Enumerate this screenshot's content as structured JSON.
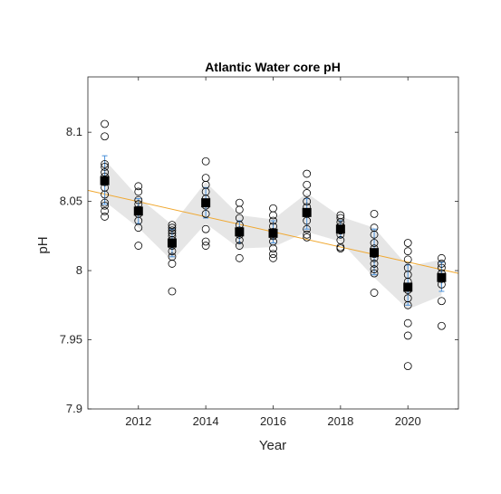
{
  "chart_data": {
    "type": "scatter",
    "title": "Atlantic Water core pH",
    "xlabel": "Year",
    "ylabel": "pH",
    "xlim": [
      2010.5,
      2021.5
    ],
    "ylim": [
      7.9,
      8.14
    ],
    "xticks": [
      2012,
      2014,
      2016,
      2018,
      2020
    ],
    "yticks": [
      7.9,
      7.95,
      8.0,
      8.05,
      8.1
    ],
    "ytick_labels": [
      "7.9",
      "7.95",
      "8",
      "8.05",
      "8.1"
    ],
    "grid": false,
    "legend": "none",
    "colors": {
      "band": "#e6e6e6",
      "trend": "#f0a830",
      "errorbar": "#4a90d9",
      "mean_marker": "#000000",
      "observation": "#000000"
    },
    "observations": [
      {
        "year": 2011,
        "values": [
          8.106,
          8.097,
          8.077,
          8.075,
          8.071,
          8.068,
          8.064,
          8.06,
          8.055,
          8.049,
          8.047,
          8.043,
          8.039
        ]
      },
      {
        "year": 2012,
        "values": [
          8.061,
          8.057,
          8.051,
          8.048,
          8.044,
          8.041,
          8.036,
          8.031,
          8.018
        ]
      },
      {
        "year": 2013,
        "values": [
          8.033,
          8.031,
          8.029,
          8.027,
          8.025,
          8.022,
          8.018,
          8.014,
          8.01,
          8.005,
          7.985
        ]
      },
      {
        "year": 2014,
        "values": [
          8.079,
          8.067,
          8.062,
          8.057,
          8.052,
          8.047,
          8.041,
          8.03,
          8.021,
          8.018
        ]
      },
      {
        "year": 2015,
        "values": [
          8.049,
          8.044,
          8.038,
          8.033,
          8.029,
          8.026,
          8.022,
          8.018,
          8.009
        ]
      },
      {
        "year": 2016,
        "values": [
          8.045,
          8.04,
          8.036,
          8.032,
          8.028,
          8.025,
          8.021,
          8.016,
          8.012,
          8.009
        ]
      },
      {
        "year": 2017,
        "values": [
          8.07,
          8.062,
          8.056,
          8.05,
          8.046,
          8.041,
          8.036,
          8.03,
          8.026,
          8.024
        ]
      },
      {
        "year": 2018,
        "values": [
          8.04,
          8.038,
          8.035,
          8.032,
          8.029,
          8.026,
          8.022,
          8.017,
          8.016
        ]
      },
      {
        "year": 2019,
        "values": [
          8.041,
          8.031,
          8.026,
          8.02,
          8.016,
          8.012,
          8.009,
          8.005,
          8.001,
          7.998,
          7.984
        ]
      },
      {
        "year": 2020,
        "values": [
          8.02,
          8.014,
          8.008,
          8.002,
          7.997,
          7.992,
          7.986,
          7.98,
          7.975,
          7.962,
          7.953,
          7.931
        ]
      },
      {
        "year": 2021,
        "values": [
          8.009,
          8.005,
          8.002,
          7.998,
          7.994,
          7.99,
          7.978,
          7.96
        ]
      }
    ],
    "means": {
      "x": [
        2011,
        2012,
        2013,
        2014,
        2015,
        2016,
        2017,
        2018,
        2019,
        2020,
        2021
      ],
      "y": [
        8.065,
        8.043,
        8.02,
        8.049,
        8.028,
        8.027,
        8.042,
        8.03,
        8.013,
        7.988,
        7.995
      ],
      "err_low": [
        8.048,
        8.034,
        8.01,
        8.038,
        8.02,
        8.02,
        8.03,
        8.024,
        7.997,
        7.975,
        7.985
      ],
      "err_high": [
        8.083,
        8.052,
        8.03,
        8.06,
        8.036,
        8.036,
        8.052,
        8.036,
        8.03,
        8.004,
        8.006
      ]
    },
    "band": {
      "x": [
        2011,
        2012,
        2013,
        2014,
        2015,
        2016,
        2017,
        2018,
        2019,
        2020,
        2021
      ],
      "lower": [
        8.05,
        8.031,
        8.007,
        8.034,
        8.016,
        8.017,
        8.028,
        8.021,
        7.995,
        7.972,
        7.982
      ],
      "upper": [
        8.08,
        8.053,
        8.033,
        8.064,
        8.04,
        8.037,
        8.056,
        8.039,
        8.031,
        8.003,
        8.008
      ]
    },
    "trend": {
      "x": [
        2010.5,
        2021.5
      ],
      "y": [
        8.058,
        7.998
      ]
    }
  }
}
